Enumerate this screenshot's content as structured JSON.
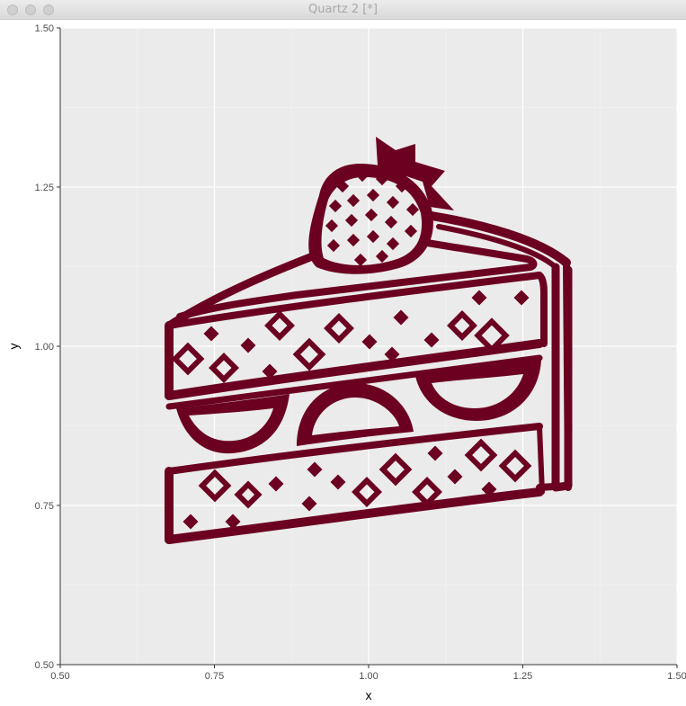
{
  "window": {
    "title": "Quartz 2 [*]"
  },
  "colors": {
    "panel_background": "#EBEBEB",
    "grid_major": "#FFFFFF",
    "grid_minor": "#F5F5F5",
    "image_color": "#6B0020"
  },
  "image_subject": "cake-slice-with-strawberry",
  "chart_data": {
    "type": "scatter",
    "title": "",
    "xlabel": "x",
    "ylabel": "y",
    "xlim": [
      0.5,
      1.5
    ],
    "ylim": [
      0.5,
      1.5
    ],
    "x_ticks": [
      0.5,
      0.75,
      1.0,
      1.25,
      1.5
    ],
    "x_tick_labels": [
      "0.50",
      "0.75",
      "1.00",
      "1.25",
      "1.50"
    ],
    "y_ticks": [
      0.5,
      0.75,
      1.0,
      1.25,
      1.5
    ],
    "y_tick_labels": [
      "0.50",
      "0.75",
      "1.00",
      "1.25",
      "1.50"
    ],
    "grid": true,
    "legend": "none"
  }
}
